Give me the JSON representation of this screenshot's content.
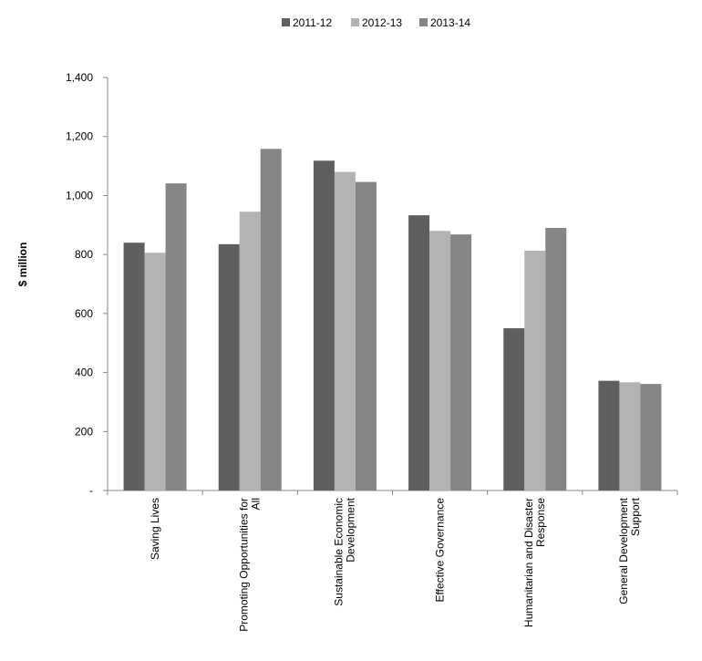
{
  "chart_data": {
    "type": "bar",
    "title": "",
    "xlabel": "",
    "ylabel": "$ million",
    "ylim": [
      0,
      1400
    ],
    "yticks": [
      0,
      200,
      400,
      600,
      800,
      1000,
      1200,
      1400
    ],
    "ytick_labels": [
      "-",
      "200",
      "400",
      "600",
      "800",
      "1,000",
      "1,200",
      "1,400"
    ],
    "grid": false,
    "legend_position": "top",
    "categories": [
      [
        "Saving Lives"
      ],
      [
        "Promoting Opportunities for",
        "All"
      ],
      [
        "Sustainable Economic",
        "Development"
      ],
      [
        "Effective Governance"
      ],
      [
        "Humanitarian and Disaster",
        "Response"
      ],
      [
        "General Development",
        "Support"
      ]
    ],
    "series": [
      {
        "name": "2011-12",
        "color": "#5f5f5f",
        "values": [
          840,
          835,
          1118,
          933,
          550,
          372
        ]
      },
      {
        "name": "2012-13",
        "color": "#b3b3b3",
        "values": [
          806,
          945,
          1080,
          880,
          813,
          367
        ]
      },
      {
        "name": "2013-14",
        "color": "#858585",
        "values": [
          1041,
          1158,
          1046,
          868,
          890,
          361
        ]
      }
    ]
  }
}
